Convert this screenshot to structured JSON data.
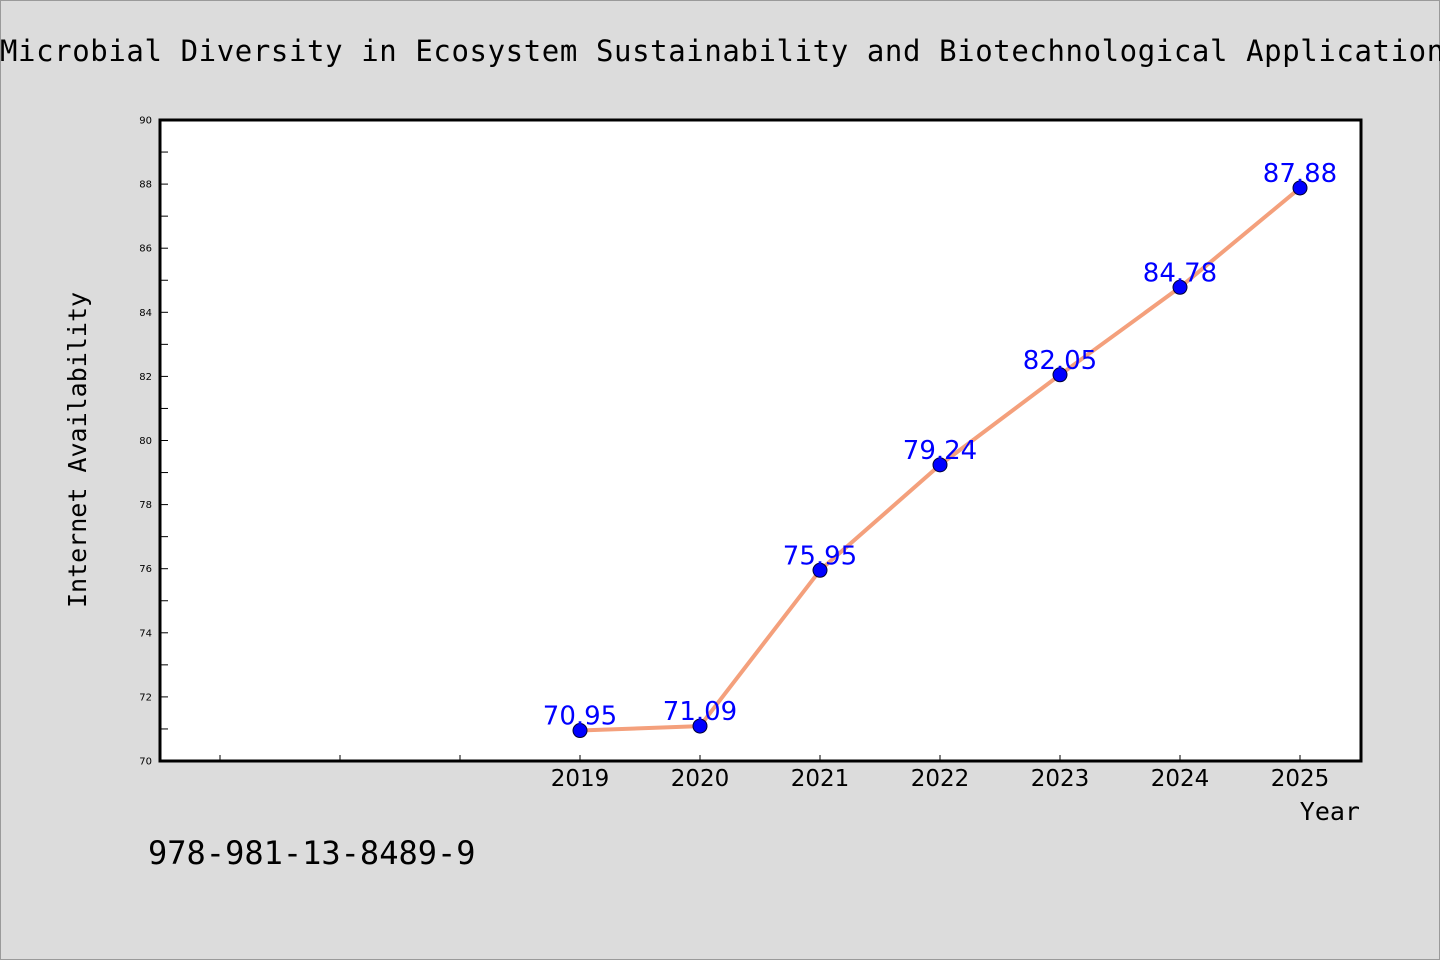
{
  "chart_data": {
    "type": "line",
    "title": "Microbial Diversity in Ecosystem Sustainability and Biotechnological Applications",
    "xlabel": "Year",
    "ylabel": "Internet Availability",
    "categories": [
      "2019",
      "2020",
      "2021",
      "2022",
      "2023",
      "2024",
      "2025"
    ],
    "values": [
      70.95,
      71.09,
      75.95,
      79.24,
      82.05,
      84.78,
      87.88
    ],
    "data_labels": [
      "70.95",
      "71.09",
      "75.95",
      "79.24",
      "82.05",
      "84.78",
      "87.88"
    ],
    "ylim": [
      70,
      90
    ],
    "y_ticks": [
      "70",
      "72",
      "74",
      "76",
      "78",
      "80",
      "82",
      "84",
      "86",
      "88",
      "90"
    ],
    "grid": false,
    "line_color": "#f4a07c",
    "marker_color": "#0000ff",
    "label_color": "#0000ff"
  },
  "footer": {
    "isbn": "978-981-13-8489-9"
  }
}
